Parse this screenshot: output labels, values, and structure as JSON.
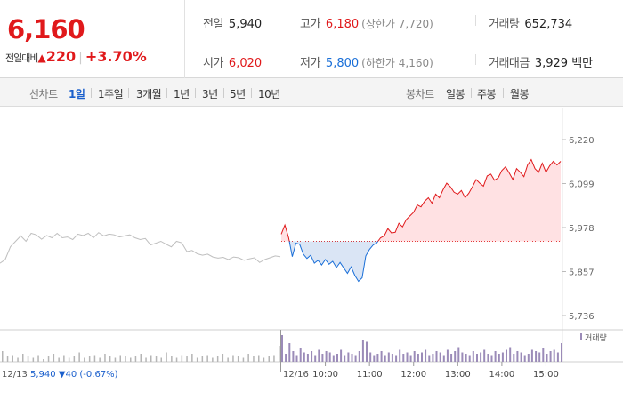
{
  "quote": {
    "price": "6,160",
    "change_label": "전일대비",
    "change_arrow": "▲",
    "change_value": "220",
    "change_pct": "+3.70%"
  },
  "info": {
    "prev_close_label": "전일",
    "prev_close": "5,940",
    "open_label": "시가",
    "open": "6,020",
    "high_label": "고가",
    "high": "6,180",
    "upper_limit": "(상한가 7,720)",
    "low_label": "저가",
    "low": "5,800",
    "lower_limit": "(하한가 4,160)",
    "volume_label": "거래량",
    "volume": "652,734",
    "amount_label": "거래대금",
    "amount": "3,929 백만"
  },
  "toolbar": {
    "line_label": "선차트",
    "line_ranges": [
      "1일",
      "1주일",
      "3개월",
      "1년",
      "3년",
      "5년",
      "10년"
    ],
    "candle_label": "봉차트",
    "candle_ranges": [
      "일봉",
      "주봉",
      "월봉"
    ]
  },
  "colors": {
    "up": "#e0191b",
    "down": "#1a6fd8",
    "prev_day": "#bfbfbf",
    "volume": "#9b8bb8"
  },
  "chart_data": {
    "type": "line",
    "ylim": [
      5736,
      6220
    ],
    "yticks": [
      "6,220",
      "6,099",
      "5,978",
      "5,857",
      "5,736"
    ],
    "baseline": 5940,
    "prev_day_label": "12/13",
    "prev_day_summary": "5,940 ▼40 (-0.67%)",
    "day_label": "12/16",
    "time_ticks": [
      "10:00",
      "11:00",
      "12:00",
      "13:00",
      "14:00",
      "15:00"
    ],
    "volume_legend": "거래량",
    "prev_day_prices": [
      5880,
      5890,
      5925,
      5940,
      5955,
      5940,
      5962,
      5958,
      5946,
      5956,
      5950,
      5962,
      5950,
      5952,
      5945,
      5960,
      5956,
      5962,
      5950,
      5964,
      5955,
      5960,
      5958,
      5952,
      5955,
      5958,
      5950,
      5945,
      5948,
      5930,
      5935,
      5940,
      5932,
      5925,
      5940,
      5936,
      5912,
      5915,
      5906,
      5902,
      5905,
      5897,
      5894,
      5896,
      5890,
      5897,
      5895,
      5888,
      5892,
      5895,
      5882,
      5890,
      5895,
      5900,
      5898
    ],
    "day_times": [
      "09:00",
      "09:05",
      "09:10",
      "09:15",
      "09:20",
      "09:25",
      "09:30",
      "09:35",
      "09:40",
      "09:45",
      "09:50",
      "09:55",
      "10:00",
      "10:05",
      "10:10",
      "10:15",
      "10:20",
      "10:25",
      "10:30",
      "10:35",
      "10:40",
      "10:45",
      "10:50",
      "10:55",
      "11:00",
      "11:05",
      "11:10",
      "11:15",
      "11:20",
      "11:25",
      "11:30",
      "11:35",
      "11:40",
      "11:45",
      "11:50",
      "11:55",
      "12:00",
      "12:05",
      "12:10",
      "12:15",
      "12:20",
      "12:25",
      "12:30",
      "12:35",
      "12:40",
      "12:45",
      "12:50",
      "12:55",
      "13:00",
      "13:05",
      "13:10",
      "13:15",
      "13:20",
      "13:25",
      "13:30",
      "13:35",
      "13:40",
      "13:45",
      "13:50",
      "13:55",
      "14:00",
      "14:05",
      "14:10",
      "14:15",
      "14:20",
      "14:25",
      "14:30",
      "14:35",
      "14:40",
      "14:45",
      "14:50",
      "14:55",
      "15:00",
      "15:05",
      "15:10",
      "15:15",
      "15:20"
    ],
    "day_prices": [
      5960,
      5985,
      5950,
      5898,
      5935,
      5932,
      5905,
      5893,
      5902,
      5880,
      5888,
      5875,
      5890,
      5877,
      5885,
      5868,
      5882,
      5867,
      5852,
      5870,
      5847,
      5830,
      5840,
      5900,
      5918,
      5930,
      5936,
      5950,
      5955,
      5975,
      5963,
      5965,
      5990,
      5980,
      6000,
      6010,
      6020,
      6040,
      6035,
      6050,
      6060,
      6045,
      6070,
      6060,
      6082,
      6100,
      6090,
      6075,
      6070,
      6080,
      6060,
      6072,
      6090,
      6110,
      6100,
      6092,
      6120,
      6125,
      6108,
      6115,
      6135,
      6145,
      6128,
      6110,
      6140,
      6130,
      6118,
      6150,
      6165,
      6140,
      6130,
      6155,
      6130,
      6148,
      6160,
      6150,
      6160
    ],
    "prev_day_volume": [
      8,
      4,
      5,
      3,
      6,
      4,
      3,
      5,
      2,
      4,
      6,
      3,
      5,
      3,
      4,
      7,
      3,
      4,
      5,
      3,
      6,
      4,
      3,
      5,
      4,
      3,
      4,
      6,
      3,
      5,
      4,
      3,
      7,
      4,
      3,
      5,
      4,
      6,
      3,
      4,
      5,
      3,
      4,
      6,
      3,
      5,
      4,
      3,
      6,
      4,
      5,
      3,
      4,
      5,
      12
    ],
    "day_volume": [
      20,
      6,
      14,
      8,
      5,
      10,
      7,
      6,
      8,
      5,
      9,
      6,
      8,
      7,
      5,
      6,
      9,
      5,
      7,
      6,
      5,
      8,
      16,
      15,
      7,
      5,
      6,
      8,
      5,
      7,
      6,
      5,
      9,
      6,
      7,
      5,
      8,
      6,
      7,
      9,
      5,
      6,
      8,
      7,
      5,
      9,
      6,
      8,
      11,
      7,
      6,
      5,
      8,
      6,
      7,
      9,
      6,
      5,
      8,
      6,
      7,
      9,
      11,
      6,
      8,
      7,
      5,
      6,
      9,
      8,
      7,
      10,
      6,
      8,
      9,
      7,
      14
    ]
  }
}
